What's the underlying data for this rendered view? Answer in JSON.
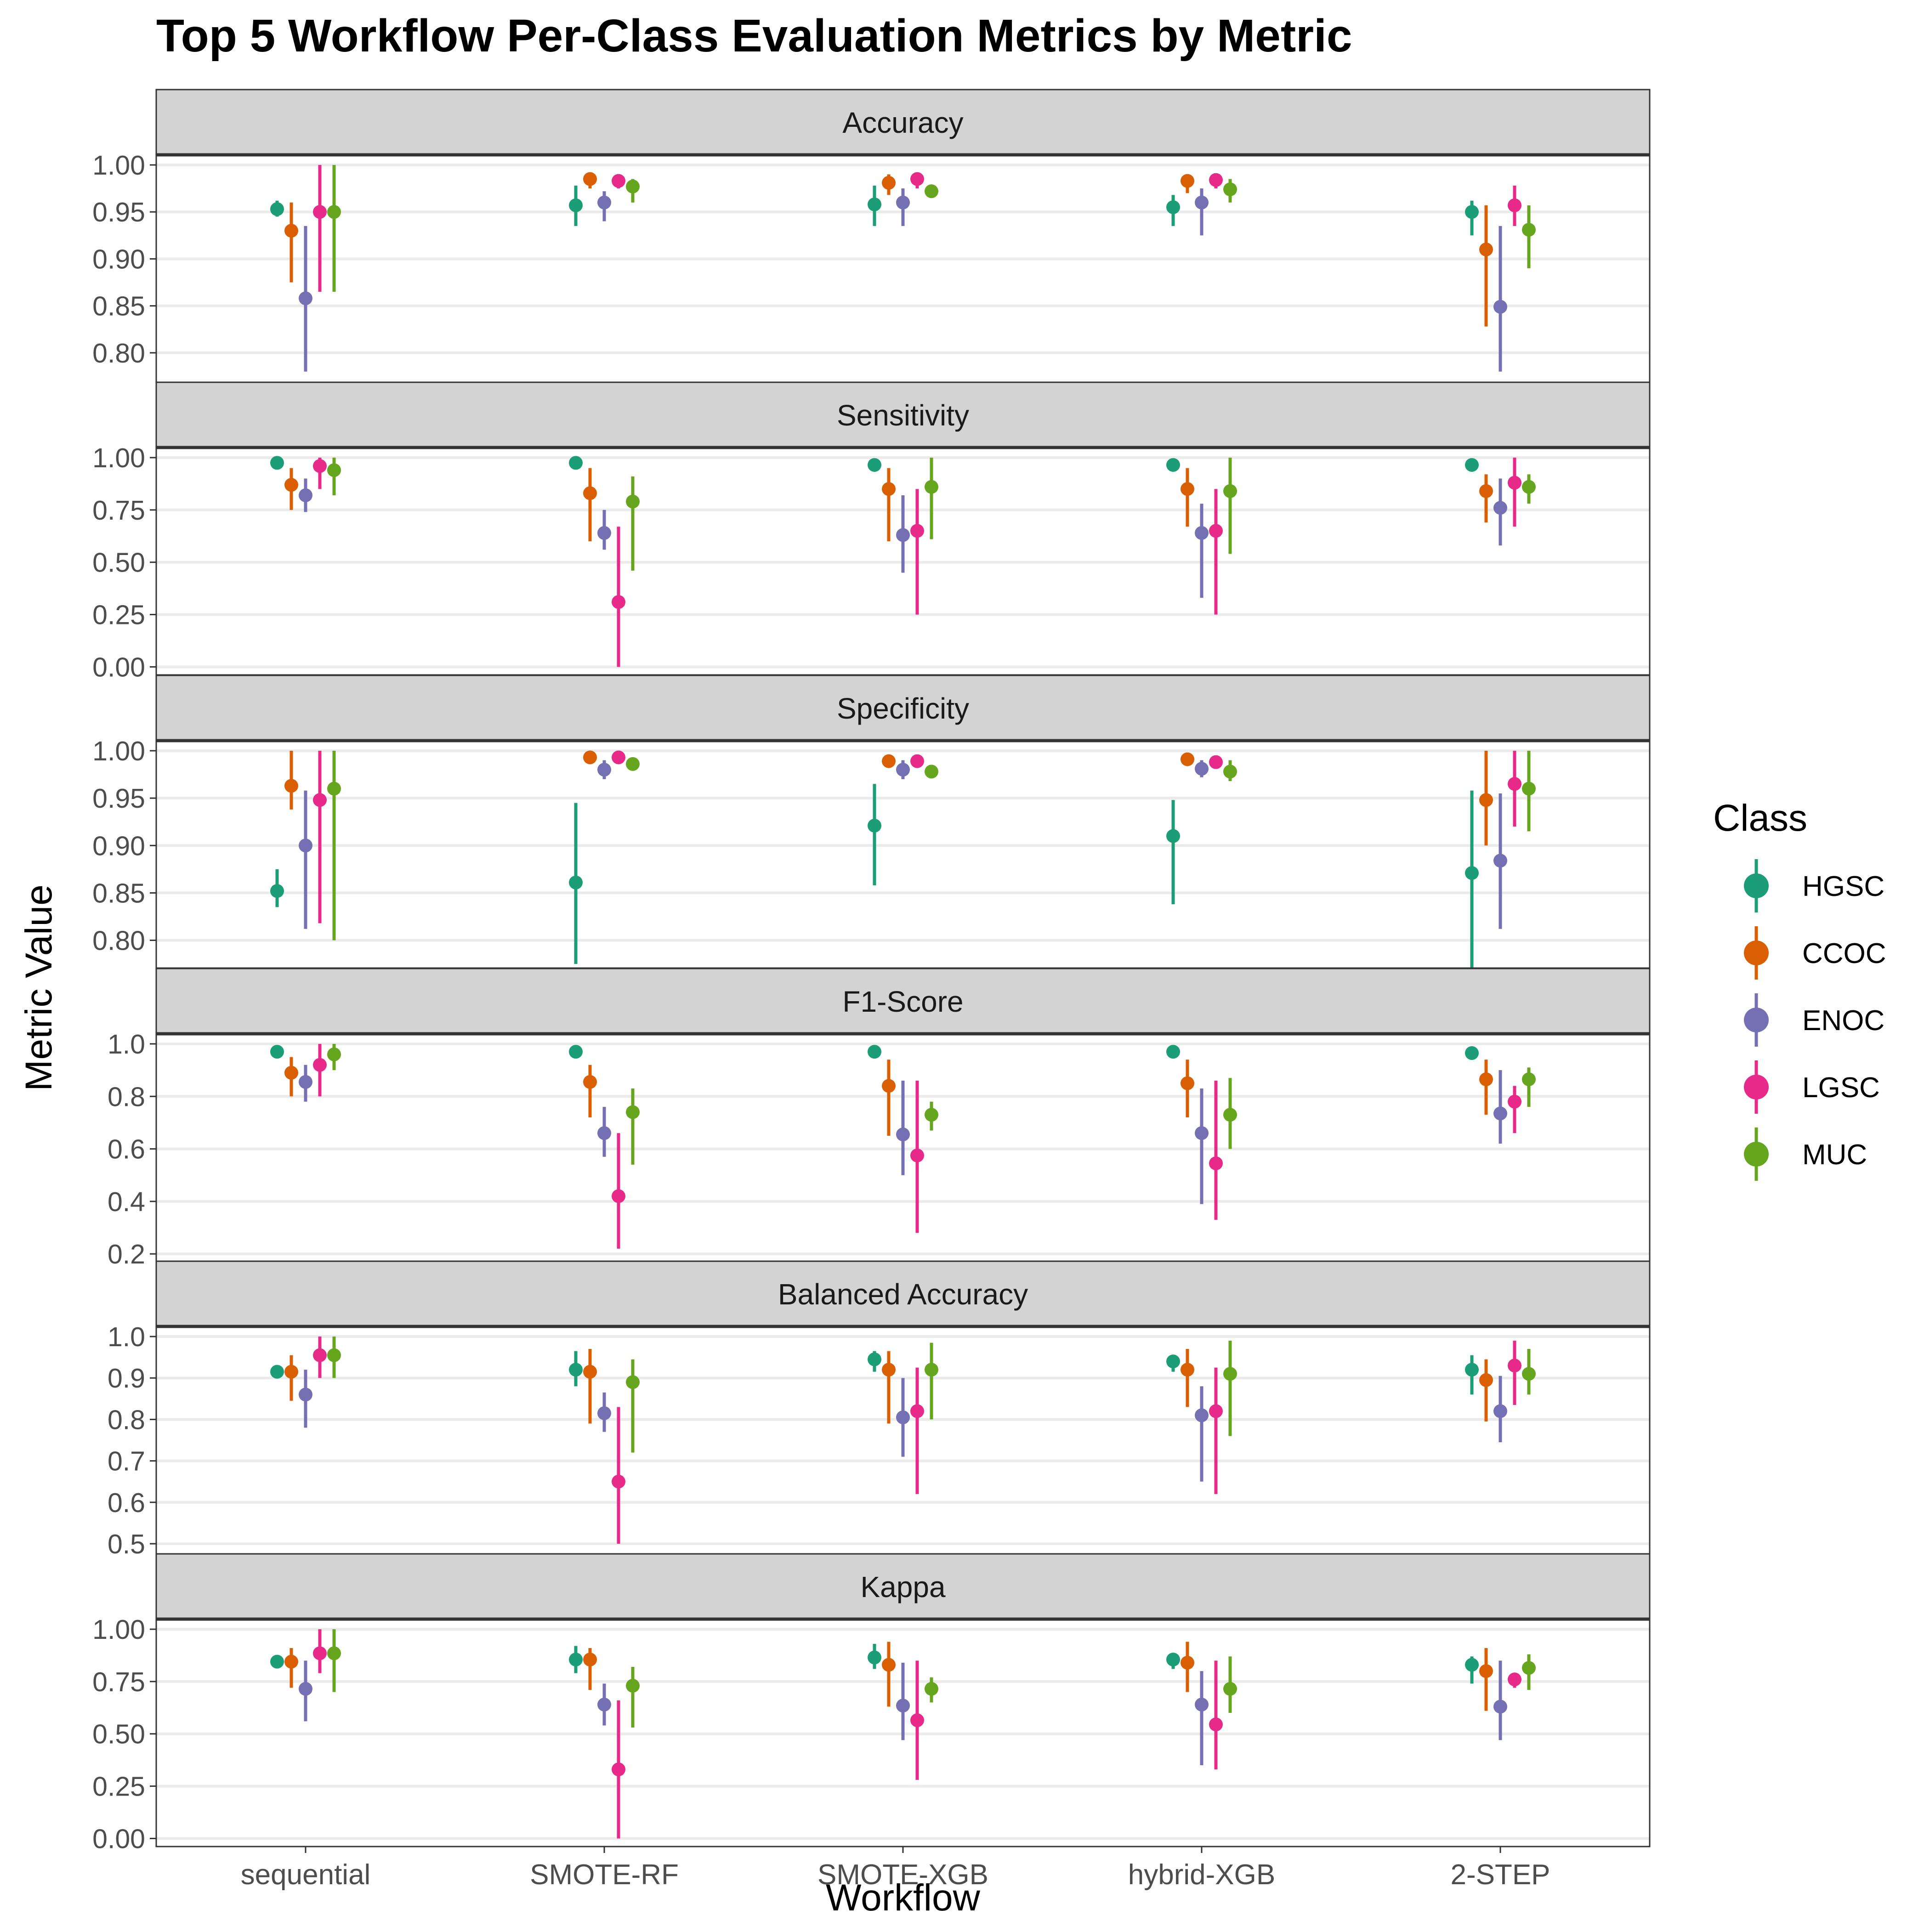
{
  "chart_data": {
    "type": "pointrange",
    "title": "Top 5 Workflow Per-Class Evaluation Metrics by Metric",
    "xlabel": "Workflow",
    "ylabel": "Metric Value",
    "workflows": [
      "sequential",
      "SMOTE-RF",
      "SMOTE-XGB",
      "hybrid-XGB",
      "2-STEP"
    ],
    "legend": {
      "title": "Class",
      "position": "right",
      "classes": [
        {
          "name": "HGSC",
          "color": "#1B9E77"
        },
        {
          "name": "CCOC",
          "color": "#D95F02"
        },
        {
          "name": "ENOC",
          "color": "#7570B3"
        },
        {
          "name": "LGSC",
          "color": "#E7298A"
        },
        {
          "name": "MUC",
          "color": "#66A61E"
        }
      ]
    },
    "panels": [
      {
        "name": "Accuracy",
        "ylim": [
          0.775,
          1.0
        ],
        "ticks": [
          0.8,
          0.85,
          0.9,
          0.95,
          1.0
        ],
        "tick_labels": [
          "0.80",
          "0.85",
          "0.90",
          "0.95",
          "1.00"
        ],
        "points": [
          [
            [
              0.953,
              0.945,
              0.962
            ],
            [
              0.93,
              0.875,
              0.96
            ],
            [
              0.858,
              0.78,
              0.935
            ],
            [
              0.95,
              0.865,
              1.0
            ],
            [
              0.95,
              0.865,
              1.0
            ]
          ],
          [
            [
              0.957,
              0.935,
              0.978
            ],
            [
              0.985,
              0.975,
              0.99
            ],
            [
              0.96,
              0.94,
              0.972
            ],
            [
              0.983,
              0.975,
              0.99
            ],
            [
              0.977,
              0.96,
              0.985
            ]
          ],
          [
            [
              0.958,
              0.935,
              0.978
            ],
            [
              0.981,
              0.968,
              0.99
            ],
            [
              0.96,
              0.935,
              0.975
            ],
            [
              0.985,
              0.975,
              0.99
            ],
            [
              0.972,
              0.965,
              0.978
            ]
          ],
          [
            [
              0.955,
              0.935,
              0.968
            ],
            [
              0.983,
              0.97,
              0.99
            ],
            [
              0.96,
              0.925,
              0.975
            ],
            [
              0.984,
              0.975,
              0.99
            ],
            [
              0.974,
              0.96,
              0.985
            ]
          ],
          [
            [
              0.95,
              0.925,
              0.962
            ],
            [
              0.91,
              0.828,
              0.957
            ],
            [
              0.849,
              0.78,
              0.935
            ],
            [
              0.957,
              0.935,
              0.978
            ],
            [
              0.931,
              0.89,
              0.957
            ]
          ]
        ]
      },
      {
        "name": "Sensitivity",
        "ylim": [
          -0.01,
          1.0
        ],
        "ticks": [
          0.0,
          0.25,
          0.5,
          0.75,
          1.0
        ],
        "tick_labels": [
          "0.00",
          "0.25",
          "0.50",
          "0.75",
          "1.00"
        ],
        "points": [
          [
            [
              0.975,
              0.96,
              0.99
            ],
            [
              0.87,
              0.75,
              0.95
            ],
            [
              0.82,
              0.74,
              0.9
            ],
            [
              0.96,
              0.85,
              1.0
            ],
            [
              0.94,
              0.82,
              1.0
            ]
          ],
          [
            [
              0.975,
              0.96,
              0.99
            ],
            [
              0.83,
              0.6,
              0.95
            ],
            [
              0.64,
              0.56,
              0.75
            ],
            [
              0.31,
              0.0,
              0.67
            ],
            [
              0.79,
              0.46,
              0.91
            ]
          ],
          [
            [
              0.965,
              0.95,
              0.98
            ],
            [
              0.85,
              0.6,
              0.95
            ],
            [
              0.63,
              0.45,
              0.82
            ],
            [
              0.65,
              0.25,
              0.85
            ],
            [
              0.86,
              0.61,
              1.0
            ]
          ],
          [
            [
              0.965,
              0.95,
              0.98
            ],
            [
              0.85,
              0.67,
              0.95
            ],
            [
              0.64,
              0.33,
              0.78
            ],
            [
              0.65,
              0.25,
              0.85
            ],
            [
              0.84,
              0.54,
              1.0
            ]
          ],
          [
            [
              0.965,
              0.95,
              0.98
            ],
            [
              0.84,
              0.69,
              0.92
            ],
            [
              0.76,
              0.58,
              0.9
            ],
            [
              0.88,
              0.67,
              1.0
            ],
            [
              0.86,
              0.78,
              0.92
            ]
          ]
        ]
      },
      {
        "name": "Specificity",
        "ylim": [
          0.777,
          1.0
        ],
        "ticks": [
          0.8,
          0.85,
          0.9,
          0.95,
          1.0
        ],
        "tick_labels": [
          "0.80",
          "0.85",
          "0.90",
          "0.95",
          "1.00"
        ],
        "points": [
          [
            [
              0.852,
              0.835,
              0.875
            ],
            [
              0.963,
              0.938,
              1.0
            ],
            [
              0.9,
              0.812,
              0.958
            ],
            [
              0.948,
              0.818,
              1.0
            ],
            [
              0.96,
              0.8,
              1.0
            ]
          ],
          [
            [
              0.861,
              0.775,
              0.945
            ],
            [
              0.993,
              0.99,
              0.997
            ],
            [
              0.98,
              0.97,
              0.99
            ],
            [
              0.993,
              0.99,
              0.997
            ],
            [
              0.986,
              0.98,
              0.99
            ]
          ],
          [
            [
              0.921,
              0.858,
              0.965
            ],
            [
              0.989,
              0.985,
              0.995
            ],
            [
              0.98,
              0.97,
              0.99
            ],
            [
              0.989,
              0.985,
              0.995
            ],
            [
              0.978,
              0.972,
              0.985
            ]
          ],
          [
            [
              0.91,
              0.838,
              0.948
            ],
            [
              0.991,
              0.987,
              0.995
            ],
            [
              0.981,
              0.972,
              0.99
            ],
            [
              0.988,
              0.982,
              0.995
            ],
            [
              0.978,
              0.968,
              0.99
            ]
          ],
          [
            [
              0.871,
              0.768,
              0.958
            ],
            [
              0.948,
              0.9,
              1.0
            ],
            [
              0.884,
              0.812,
              0.955
            ],
            [
              0.965,
              0.92,
              1.0
            ],
            [
              0.96,
              0.915,
              1.0
            ]
          ]
        ]
      },
      {
        "name": "F1-Score",
        "ylim": [
          0.195,
          1.0
        ],
        "ticks": [
          0.2,
          0.4,
          0.6,
          0.8,
          1.0
        ],
        "tick_labels": [
          "0.2",
          "0.4",
          "0.6",
          "0.8",
          "1.0"
        ],
        "points": [
          [
            [
              0.97,
              0.96,
              0.98
            ],
            [
              0.89,
              0.8,
              0.95
            ],
            [
              0.855,
              0.78,
              0.92
            ],
            [
              0.92,
              0.8,
              1.0
            ],
            [
              0.96,
              0.9,
              1.0
            ]
          ],
          [
            [
              0.97,
              0.96,
              0.98
            ],
            [
              0.855,
              0.72,
              0.92
            ],
            [
              0.66,
              0.57,
              0.76
            ],
            [
              0.42,
              0.22,
              0.66
            ],
            [
              0.74,
              0.54,
              0.83
            ]
          ],
          [
            [
              0.97,
              0.96,
              0.98
            ],
            [
              0.84,
              0.65,
              0.94
            ],
            [
              0.655,
              0.5,
              0.86
            ],
            [
              0.575,
              0.28,
              0.86
            ],
            [
              0.73,
              0.67,
              0.78
            ]
          ],
          [
            [
              0.97,
              0.96,
              0.98
            ],
            [
              0.85,
              0.72,
              0.94
            ],
            [
              0.66,
              0.39,
              0.83
            ],
            [
              0.545,
              0.33,
              0.86
            ],
            [
              0.73,
              0.6,
              0.87
            ]
          ],
          [
            [
              0.965,
              0.955,
              0.975
            ],
            [
              0.865,
              0.73,
              0.94
            ],
            [
              0.735,
              0.62,
              0.9
            ],
            [
              0.78,
              0.66,
              0.84
            ],
            [
              0.865,
              0.76,
              0.91
            ]
          ]
        ]
      },
      {
        "name": "Balanced Accuracy",
        "ylim": [
          0.49,
          1.0
        ],
        "ticks": [
          0.5,
          0.6,
          0.7,
          0.8,
          0.9,
          1.0
        ],
        "tick_labels": [
          "0.5",
          "0.6",
          "0.7",
          "0.8",
          "0.9",
          "1.0"
        ],
        "points": [
          [
            [
              0.915,
              0.9,
              0.925
            ],
            [
              0.915,
              0.845,
              0.955
            ],
            [
              0.86,
              0.78,
              0.92
            ],
            [
              0.955,
              0.9,
              1.0
            ],
            [
              0.955,
              0.9,
              1.0
            ]
          ],
          [
            [
              0.92,
              0.88,
              0.965
            ],
            [
              0.915,
              0.79,
              0.97
            ],
            [
              0.815,
              0.77,
              0.865
            ],
            [
              0.65,
              0.5,
              0.83
            ],
            [
              0.89,
              0.72,
              0.945
            ]
          ],
          [
            [
              0.945,
              0.915,
              0.965
            ],
            [
              0.92,
              0.79,
              0.965
            ],
            [
              0.805,
              0.71,
              0.9
            ],
            [
              0.82,
              0.62,
              0.925
            ],
            [
              0.92,
              0.8,
              0.985
            ]
          ],
          [
            [
              0.94,
              0.915,
              0.955
            ],
            [
              0.92,
              0.83,
              0.97
            ],
            [
              0.81,
              0.65,
              0.88
            ],
            [
              0.82,
              0.62,
              0.925
            ],
            [
              0.91,
              0.76,
              0.99
            ]
          ],
          [
            [
              0.92,
              0.86,
              0.955
            ],
            [
              0.895,
              0.795,
              0.945
            ],
            [
              0.82,
              0.745,
              0.905
            ],
            [
              0.93,
              0.835,
              0.99
            ],
            [
              0.91,
              0.86,
              0.97
            ]
          ]
        ]
      },
      {
        "name": "Kappa",
        "ylim": [
          -0.01,
          1.0
        ],
        "ticks": [
          0.0,
          0.25,
          0.5,
          0.75,
          1.0
        ],
        "tick_labels": [
          "0.00",
          "0.25",
          "0.50",
          "0.75",
          "1.00"
        ],
        "points": [
          [
            [
              0.845,
              0.825,
              0.86
            ],
            [
              0.845,
              0.72,
              0.91
            ],
            [
              0.715,
              0.56,
              0.85
            ],
            [
              0.885,
              0.79,
              1.0
            ],
            [
              0.885,
              0.7,
              1.0
            ]
          ],
          [
            [
              0.855,
              0.79,
              0.92
            ],
            [
              0.855,
              0.71,
              0.91
            ],
            [
              0.64,
              0.54,
              0.74
            ],
            [
              0.33,
              0.0,
              0.66
            ],
            [
              0.73,
              0.53,
              0.82
            ]
          ],
          [
            [
              0.865,
              0.81,
              0.93
            ],
            [
              0.83,
              0.63,
              0.94
            ],
            [
              0.635,
              0.47,
              0.84
            ],
            [
              0.565,
              0.28,
              0.85
            ],
            [
              0.715,
              0.65,
              0.77
            ]
          ],
          [
            [
              0.855,
              0.81,
              0.88
            ],
            [
              0.84,
              0.7,
              0.94
            ],
            [
              0.64,
              0.35,
              0.8
            ],
            [
              0.545,
              0.33,
              0.85
            ],
            [
              0.715,
              0.6,
              0.87
            ]
          ],
          [
            [
              0.83,
              0.74,
              0.87
            ],
            [
              0.8,
              0.61,
              0.91
            ],
            [
              0.63,
              0.47,
              0.85
            ],
            [
              0.76,
              0.72,
              0.79
            ],
            [
              0.815,
              0.71,
              0.88
            ]
          ]
        ]
      }
    ]
  }
}
